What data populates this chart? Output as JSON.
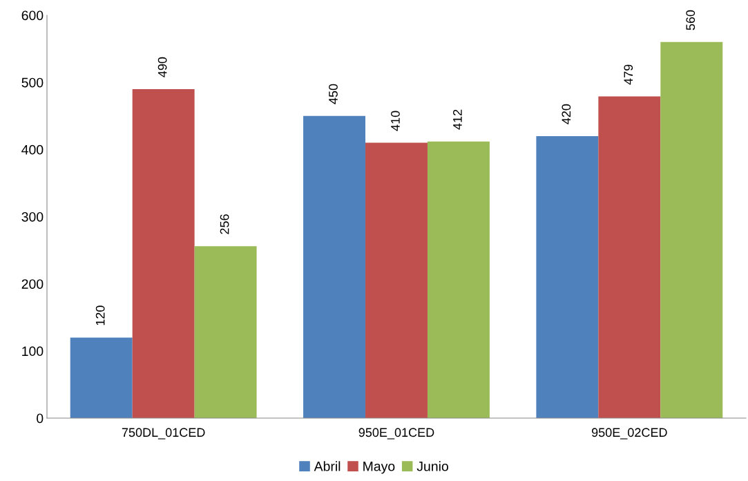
{
  "chart_data": {
    "type": "bar",
    "categories": [
      "750DL_01CED",
      "950E_01CED",
      "950E_02CED"
    ],
    "series": [
      {
        "name": "Abril",
        "color": "#4f81bd",
        "values": [
          120,
          450,
          420
        ]
      },
      {
        "name": "Mayo",
        "color": "#c0504d",
        "values": [
          490,
          410,
          479
        ]
      },
      {
        "name": "Junio",
        "color": "#9bbb59",
        "values": [
          256,
          412,
          560
        ]
      }
    ],
    "ylim": [
      0,
      600
    ],
    "yticks": [
      0,
      100,
      200,
      300,
      400,
      500,
      600
    ],
    "data_labels": true,
    "grid": false,
    "legend": "bottom"
  }
}
